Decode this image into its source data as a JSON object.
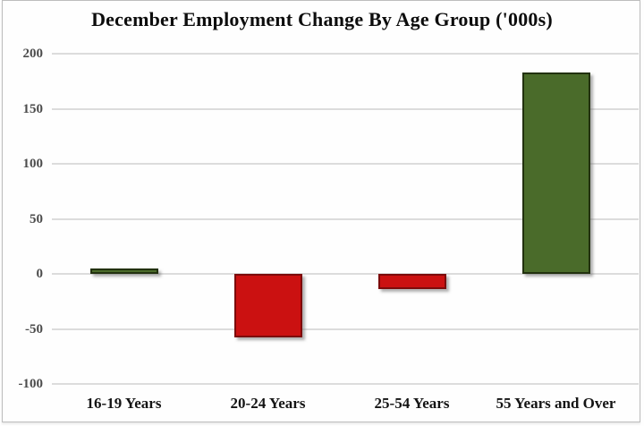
{
  "chart_data": {
    "type": "bar",
    "title": "December Employment Change By Age Group ('000s)",
    "categories": [
      "16-19 Years",
      "20-24 Years",
      "25-54 Years",
      "55 Years and Over"
    ],
    "values": [
      5,
      -58,
      -14,
      183
    ],
    "units": "thousands",
    "ylim": [
      -100,
      200
    ],
    "yticks": [
      200,
      150,
      100,
      50,
      0,
      -50,
      -100
    ],
    "xlabel": "",
    "ylabel": "",
    "grid": "horizontal-only",
    "legend": "none",
    "colors": {
      "positive_fill": "#4a6b2a",
      "positive_border": "#22310f",
      "negative_fill": "#cb1111",
      "negative_border": "#7c0b0b",
      "gridline": "#dcdcdc",
      "title_text": "#0d0d0d",
      "ytick_text": "#4c4c4c",
      "xtick_text": "#141414",
      "frame_border": "#bdbdbd",
      "background": "#fefefe"
    }
  }
}
